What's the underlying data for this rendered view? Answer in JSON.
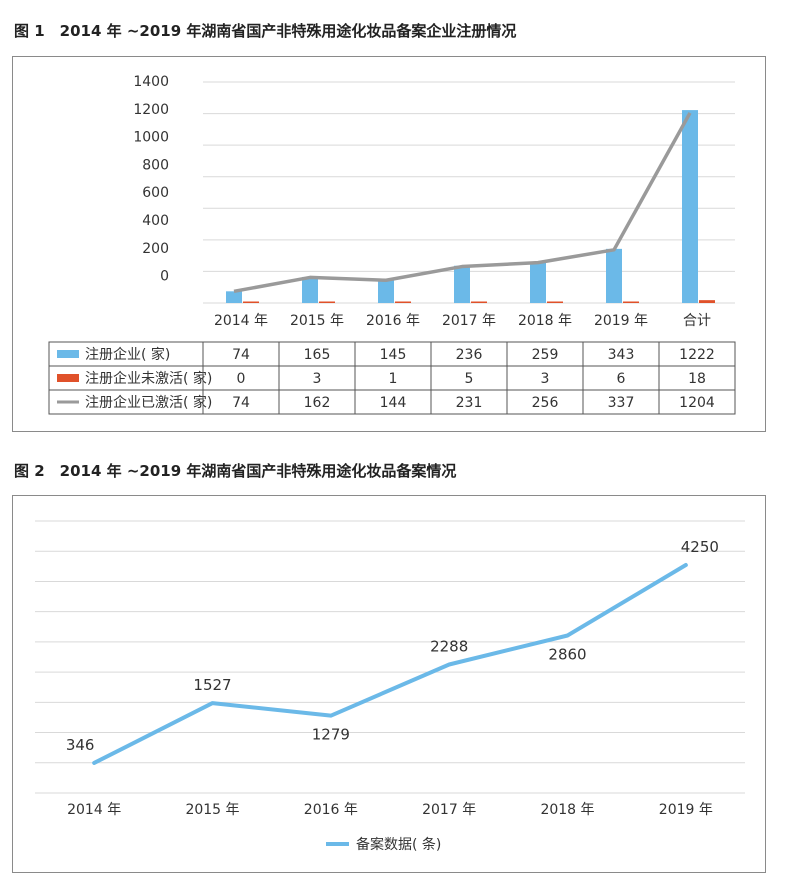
{
  "figure1": {
    "title": "图 1　2014 年 ~2019 年湖南省国产非特殊用途化妆品备案企业注册情况"
  },
  "figure2": {
    "title": "图 2　2014 年 ~2019 年湖南省国产非特殊用途化妆品备案情况"
  },
  "colors": {
    "registered": "#6bb9e8",
    "inactive": "#e0512a",
    "active": "#9a9a9a",
    "filing_line": "#6bb9e8"
  },
  "chart_data": [
    {
      "type": "bar",
      "title": "",
      "categories": [
        "2014 年",
        "2015 年",
        "2016 年",
        "2017 年",
        "2018 年",
        "2019 年",
        "合计"
      ],
      "yticks": [
        "1400",
        "1200",
        "1000",
        "800",
        "600",
        "400",
        "200",
        "0"
      ],
      "ylim": [
        0,
        1400
      ],
      "grid": true,
      "series": [
        {
          "name": "注册企业( 家)",
          "kind": "bar",
          "values": [
            74,
            165,
            145,
            236,
            259,
            343,
            1222
          ]
        },
        {
          "name": "注册企业未激活( 家)",
          "kind": "bar",
          "values": [
            0,
            3,
            1,
            5,
            3,
            6,
            18
          ]
        },
        {
          "name": "注册企业已激活( 家)",
          "kind": "line",
          "values": [
            74,
            162,
            144,
            231,
            256,
            337,
            1204
          ]
        }
      ],
      "data_table": true
    },
    {
      "type": "line",
      "title": "",
      "categories": [
        "2014 年",
        "2015 年",
        "2016 年",
        "2017 年",
        "2018 年",
        "2019 年"
      ],
      "series": [
        {
          "name": "备案数据( 条)",
          "values": [
            346,
            1527,
            1279,
            2288,
            2860,
            4250
          ]
        }
      ],
      "ylim": [
        0,
        5000
      ],
      "grid": true,
      "legend": "bottom"
    }
  ]
}
